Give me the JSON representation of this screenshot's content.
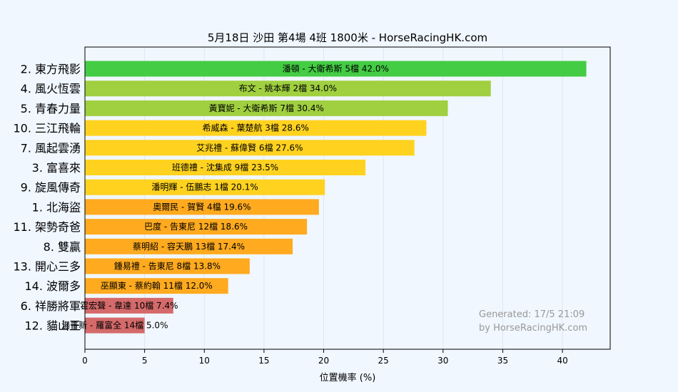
{
  "chart_data": {
    "type": "bar",
    "orientation": "horizontal",
    "title": "5月18日  沙田  第4場  4班  1800米 - HorseRacingHK.com",
    "xlabel": "位置機率 (%)",
    "xlim": [
      0,
      44
    ],
    "xticks": [
      "0",
      "5",
      "10",
      "15",
      "20",
      "25",
      "30",
      "35",
      "40"
    ],
    "grid": "vertical",
    "categories": [
      "2. 東方飛影",
      "4. 風火恆雲",
      "5. 青春力量",
      "10. 三江飛輪",
      "7. 風起雲湧",
      "3. 富喜來",
      "9. 旋風傳奇",
      "1. 北海盜",
      "11. 架勢奇爸",
      "8. 雙贏",
      "13. 開心三多",
      "14. 波爾多",
      "6. 祥勝將軍",
      "12. 貓山王"
    ],
    "values": [
      42.0,
      34.0,
      30.4,
      28.6,
      27.6,
      23.5,
      20.1,
      19.6,
      18.6,
      17.4,
      13.8,
      12.0,
      7.4,
      5.0
    ],
    "labels": [
      "潘頓 - 大衛希斯 5檔  42.0%",
      "布文 - 姚本輝 2檔  34.0%",
      "黃寶妮 - 大衛希斯 7檔  30.4%",
      "希威森 - 葉楚航 3檔  28.6%",
      "艾兆禮 - 蘇偉賢 6檔  27.6%",
      "班德禮 - 沈集成 9檔  23.5%",
      "潘明輝 - 伍鵬志 1檔  20.1%",
      "奧爾民 - 賀賢 4檔  19.6%",
      "巴度 - 告東尼 12檔  18.6%",
      "蔡明紹 - 容天鵬 13檔  17.4%",
      "鍾易禮 - 告東尼 8檔  13.8%",
      "巫顯東 - 蔡約翰 11檔  12.0%",
      "霍宏聲 - 韋達 10檔  7.4%",
      "湯普新 - 羅富全 14檔  5.0%"
    ],
    "colors": [
      "#44cc44",
      "#a0d040",
      "#a0d040",
      "#ffd21f",
      "#ffd21f",
      "#ffd21f",
      "#ffd21f",
      "#ffaa1f",
      "#ffaa1f",
      "#ffaa1f",
      "#ffaa1f",
      "#ffaa1f",
      "#d46a6a",
      "#d46a6a"
    ],
    "watermark": [
      "Generated: 17/5 21:09",
      "by HorseRacingHK.com"
    ]
  }
}
